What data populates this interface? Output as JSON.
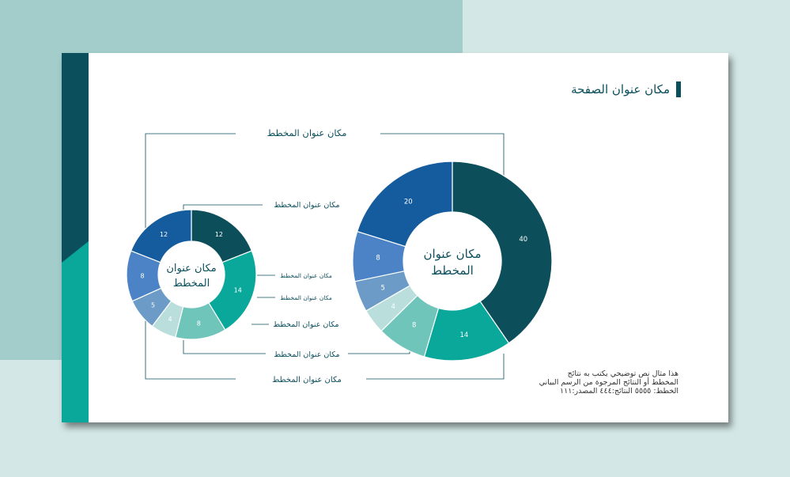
{
  "page": {
    "title": "مكان عنوان الصفحة",
    "note_lines": [
      "هذا  مثال نص توضيحي يكتب به نتائج",
      "المخطط أو النتائج المرجوة من الرسم البياني",
      "الخطط: ٥٥٥٥ النتائج:٤٤٤ المصدر:١١١"
    ]
  },
  "colors": {
    "dark_teal": "#0c4f5b",
    "teal": "#0aa79b",
    "mint": "#70c5bb",
    "pale_mint": "#b9dedb",
    "steel_blue": "#6c9bc7",
    "blue": "#4b83c6",
    "navy_blue": "#155c9e",
    "accent_sidebar": "#0b4f5c",
    "accent_sidebar_bottom": "#0aa79b"
  },
  "chart_data": [
    {
      "type": "donut",
      "center_label": "مكان عنوان المخطط",
      "values": [
        40,
        14,
        8,
        4,
        5,
        8,
        20
      ],
      "slice_colors": [
        "#0c4f5b",
        "#0aa79b",
        "#70c5bb",
        "#b9dedb",
        "#6c9bc7",
        "#4b83c6",
        "#155c9e"
      ],
      "outer_title": "مكان عنوان المخطط",
      "bottom_title": "مكان عنوان المخطط"
    },
    {
      "type": "donut",
      "center_label": "مكان عنوان المخطط",
      "values": [
        12,
        14,
        8,
        4,
        5,
        8,
        12
      ],
      "slice_colors": [
        "#0c4f5b",
        "#0aa79b",
        "#70c5bb",
        "#b9dedb",
        "#6c9bc7",
        "#4b83c6",
        "#155c9e"
      ],
      "callouts": [
        "مكان عنوان المخطط",
        "مكان عنوان المخطط",
        "مكان عنوان المخطط",
        "مكان عنوان المخطط",
        "مكان عنوان المخطط"
      ]
    }
  ]
}
